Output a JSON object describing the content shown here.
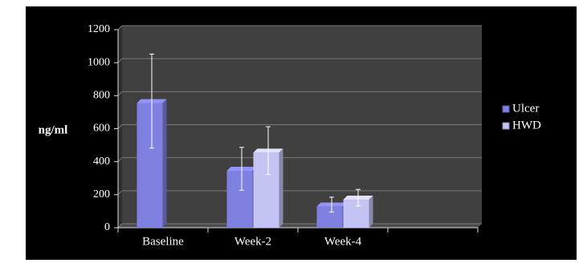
{
  "chart_data": {
    "type": "bar",
    "title": "",
    "xlabel": "",
    "ylabel": "ng/ml",
    "ylim": [
      0,
      1200
    ],
    "yticks": [
      0,
      200,
      400,
      600,
      800,
      1000,
      1200
    ],
    "categories": [
      "Baseline",
      "Week-2",
      "Week-4",
      ""
    ],
    "series": [
      {
        "name": "Ulcer",
        "values": [
          755,
          345,
          128,
          null
        ],
        "error": [
          285,
          130,
          45,
          null
        ],
        "color": "#8080e0"
      },
      {
        "name": "HWD",
        "values": [
          null,
          455,
          170,
          null
        ],
        "error": [
          null,
          145,
          50,
          null
        ],
        "color": "#c4c4f4"
      }
    ],
    "grid": true,
    "legend_position": "right",
    "background": "#000000",
    "plot_background": "#404040",
    "gridline_color": "#7a7a7a",
    "errorbar_color": "#ffffff"
  }
}
